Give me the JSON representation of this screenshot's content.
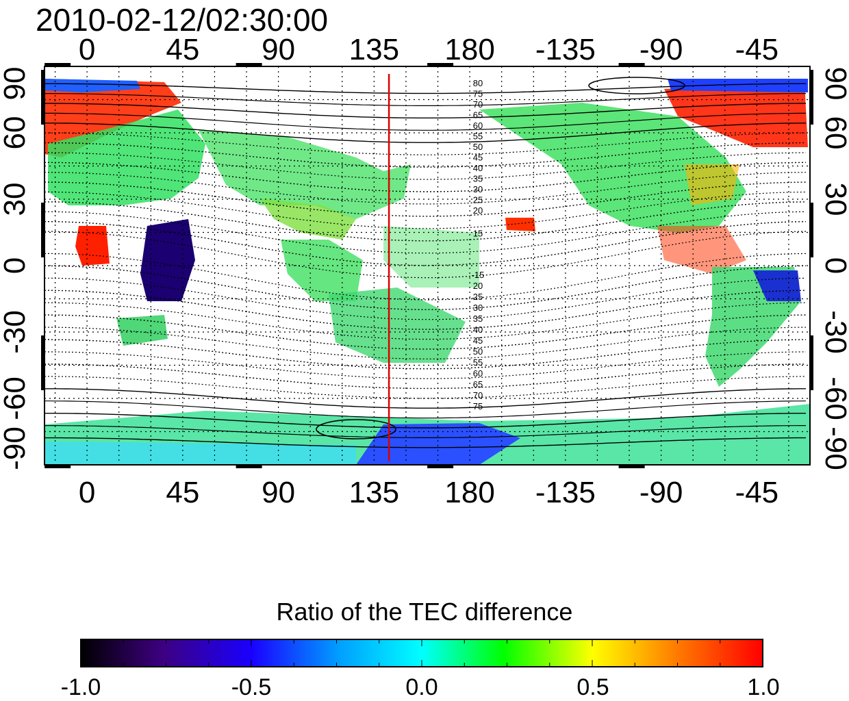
{
  "title": "2010-02-12/02:30:00",
  "axes": {
    "x_ticks_bottom": [
      "0",
      "45",
      "90",
      "135",
      "180",
      "-135",
      "-90",
      "-45"
    ],
    "x_ticks_top": [
      "0",
      "45",
      "90",
      "135",
      "180",
      "-135",
      "-90",
      "-45"
    ],
    "y_ticks_left": [
      "90",
      "60",
      "30",
      "0",
      "-30",
      "-60",
      "-90"
    ],
    "y_ticks_right": [
      "90",
      "60",
      "30",
      "0",
      "-30",
      "-60",
      "-90"
    ]
  },
  "contour_labels_north": [
    "80",
    "75",
    "70",
    "65",
    "60",
    "55",
    "50",
    "45",
    "40",
    "35",
    "30",
    "25",
    "20",
    "15"
  ],
  "contour_labels_south": [
    "-15",
    "20",
    "25",
    "30",
    "35",
    "40",
    "45",
    "50",
    "55",
    "60",
    "65",
    "70",
    "75"
  ],
  "marker_longitude": 142,
  "marker_color": "#dd0000",
  "colorbar": {
    "title": "Ratio of the TEC difference",
    "ticks": [
      "-1.0",
      "-0.5",
      "0.0",
      "0.5",
      "1.0"
    ],
    "range": [
      -1.0,
      1.0
    ],
    "colors": [
      "#000000",
      "#3d0080",
      "#1a00ff",
      "#00ffff",
      "#00ff00",
      "#ffff00",
      "#ff7f00",
      "#ff0000"
    ]
  }
}
